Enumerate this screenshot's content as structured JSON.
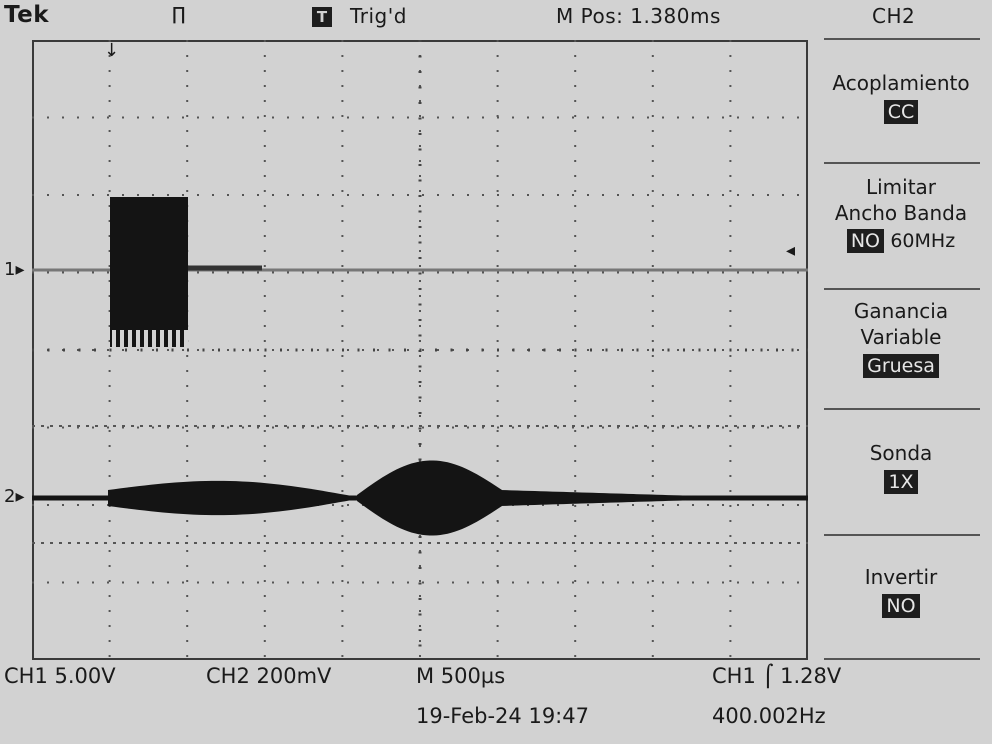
{
  "header": {
    "brand": "Tek",
    "acq_icon": "∏",
    "trig_badge": "T",
    "trig_status": "Trig'd",
    "m_pos": "M Pos: 1.380ms",
    "menu_title": "CH2"
  },
  "markers": {
    "ch1": "1▸",
    "ch2": "2▸",
    "trig_pos": "↓",
    "trig_level": "◂"
  },
  "menu": {
    "coupling_label": "Acoplamiento",
    "coupling_value": "CC",
    "bw_label_1": "Limitar",
    "bw_label_2": "Ancho Banda",
    "bw_value": "NO",
    "bw_freq": "60MHz",
    "gain_label_1": "Ganancia",
    "gain_label_2": "Variable",
    "gain_value": "Gruesa",
    "probe_label": "Sonda",
    "probe_value": "1X",
    "invert_label": "Invertir",
    "invert_value": "NO"
  },
  "status": {
    "ch1_scale": "CH1  5.00V",
    "ch2_scale": "CH2  200mV",
    "timebase": "M 500µs",
    "trigger": "CH1 ⌠ 1.28V",
    "datetime": "19-Feb-24 19:47",
    "frequency": "400.002Hz"
  },
  "colors": {
    "screen_bg": "#d2d2d2",
    "trace": "#141414",
    "highlight_bg": "#1e1e1e"
  }
}
